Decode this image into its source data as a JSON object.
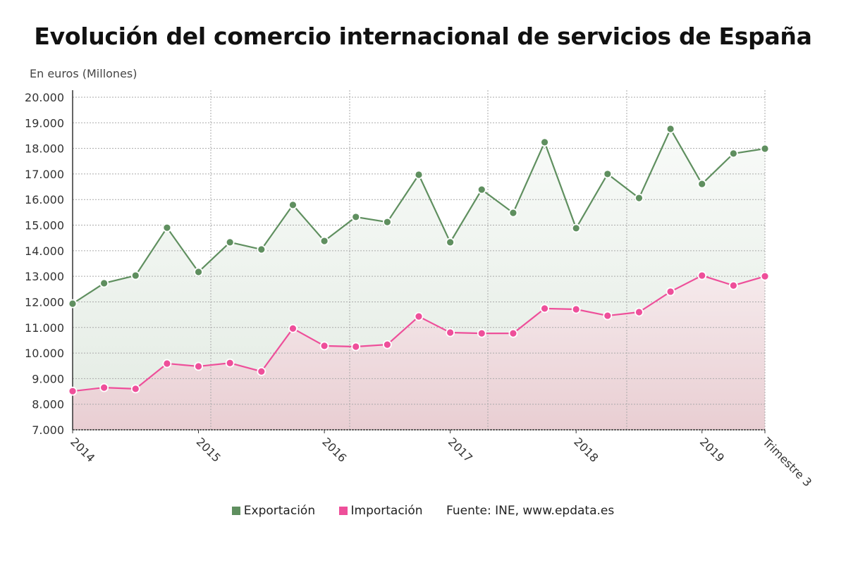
{
  "chart_data": {
    "type": "area",
    "title": "Evolución del comercio internacional de servicios de España",
    "ylabel": "En euros (Millones)",
    "ylim": [
      7000,
      20000
    ],
    "yticks": [
      7000,
      8000,
      9000,
      10000,
      11000,
      12000,
      13000,
      14000,
      15000,
      16000,
      17000,
      18000,
      19000,
      20000
    ],
    "ytick_labels": [
      "7.000",
      "8.000",
      "9.000",
      "10.000",
      "11.000",
      "12.000",
      "13.000",
      "14.000",
      "15.000",
      "16.000",
      "17.000",
      "18.000",
      "19.000",
      "20.000"
    ],
    "xtick_labels": [
      "2014",
      "2015",
      "2016",
      "2017",
      "2018",
      "2019",
      "Trimestre 3"
    ],
    "x": [
      "2014 T1",
      "2014 T2",
      "2014 T3",
      "2014 T4",
      "2015 T1",
      "2015 T2",
      "2015 T3",
      "2015 T4",
      "2016 T1",
      "2016 T2",
      "2016 T3",
      "2016 T4",
      "2017 T1",
      "2017 T2",
      "2017 T3",
      "2017 T4",
      "2018 T1",
      "2018 T2",
      "2018 T3",
      "2018 T4",
      "2019 T1",
      "2019 T2",
      "2019 T3"
    ],
    "grid": true,
    "legend_placement": "bottom",
    "series": [
      {
        "name": "Exportación",
        "color": "#5f8f5f",
        "values": [
          11930,
          12730,
          13030,
          14900,
          13170,
          14330,
          14050,
          15790,
          14380,
          15320,
          15120,
          16970,
          14330,
          16390,
          15480,
          18240,
          14880,
          17000,
          16060,
          18760,
          16610,
          17800,
          17990
        ]
      },
      {
        "name": "Importación",
        "color": "#ee4f9a",
        "values": [
          8510,
          8650,
          8600,
          9590,
          9480,
          9610,
          9280,
          10960,
          10280,
          10250,
          10330,
          11430,
          10800,
          10770,
          10770,
          11740,
          11710,
          11460,
          11600,
          12400,
          13030,
          12640,
          13000
        ]
      }
    ],
    "source": "Fuente: INE, www.epdata.es"
  }
}
